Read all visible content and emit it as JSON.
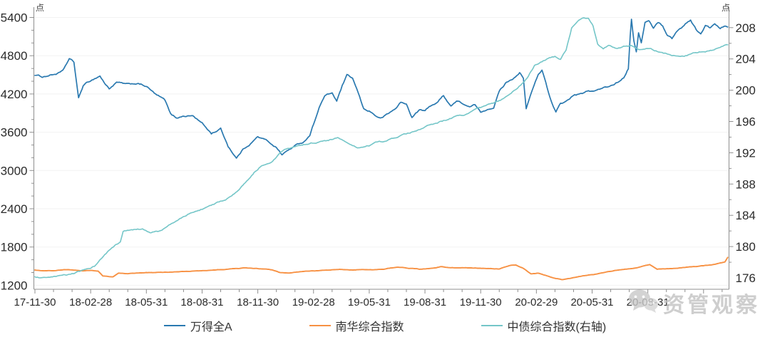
{
  "units": {
    "left": "点",
    "right": "点"
  },
  "watermark": {
    "text": "资管观察",
    "icon": "wechat-logo",
    "color": "#c3c3c3"
  },
  "colors": {
    "axis": "#8f8f8f",
    "grid": "#f2f2f2",
    "tick_text": "#2b2b2b"
  },
  "legend": [
    {
      "label": "万得全A",
      "color": "#2a79b0"
    },
    {
      "label": "南华综合指数",
      "color": "#f79143"
    },
    {
      "label": "中债综合指数(右轴)",
      "color": "#74c6c8"
    }
  ],
  "chart_data": {
    "type": "line",
    "title": "",
    "grid": "horizontal-light",
    "legend_position": "bottom-center",
    "x_axis": {
      "kind": "time",
      "start": "2017-11-30",
      "end": "2021-01",
      "minor_tick": "monthly",
      "tick_labels": [
        "17-11-30",
        "18-02-28",
        "18-05-31",
        "18-08-31",
        "18-11-30",
        "19-02-28",
        "19-05-31",
        "19-08-31",
        "19-11-30",
        "20-02-29",
        "20-05-31",
        "20-08-31"
      ],
      "label_interval_months": 3
    },
    "left_axis": {
      "unit": "点",
      "ticks": [
        5400,
        4800,
        4200,
        3600,
        3000,
        2400,
        1800,
        1200
      ],
      "minor_step": 200,
      "range": [
        1200,
        5400
      ]
    },
    "right_axis": {
      "unit": "点",
      "ticks": [
        208,
        204,
        200,
        196,
        192,
        188,
        184,
        180,
        176
      ],
      "minor_step": 2,
      "range": [
        176,
        208
      ]
    },
    "series": [
      {
        "name": "万得全A",
        "axis": "left",
        "color": "#2a79b0",
        "width": 1.7,
        "noise": 26,
        "points": [
          [
            0,
            4500
          ],
          [
            0.4,
            4470
          ],
          [
            0.8,
            4495
          ],
          [
            1.2,
            4520
          ],
          [
            1.5,
            4555
          ],
          [
            1.85,
            4750
          ],
          [
            2.1,
            4695
          ],
          [
            2.35,
            4130
          ],
          [
            2.6,
            4330
          ],
          [
            3,
            4410
          ],
          [
            3.5,
            4485
          ],
          [
            3.8,
            4350
          ],
          [
            4,
            4285
          ],
          [
            4.4,
            4380
          ],
          [
            5,
            4345
          ],
          [
            5.5,
            4365
          ],
          [
            6,
            4320
          ],
          [
            6.5,
            4190
          ],
          [
            7,
            4100
          ],
          [
            7.3,
            3880
          ],
          [
            7.6,
            3825
          ],
          [
            8,
            3855
          ],
          [
            8.5,
            3860
          ],
          [
            9,
            3740
          ],
          [
            9.5,
            3580
          ],
          [
            10,
            3655
          ],
          [
            10.4,
            3385
          ],
          [
            10.85,
            3195
          ],
          [
            11.2,
            3330
          ],
          [
            11.6,
            3425
          ],
          [
            12,
            3530
          ],
          [
            12.5,
            3465
          ],
          [
            13,
            3365
          ],
          [
            13.3,
            3250
          ],
          [
            13.7,
            3330
          ],
          [
            14,
            3385
          ],
          [
            14.5,
            3455
          ],
          [
            14.8,
            3560
          ],
          [
            15,
            3730
          ],
          [
            15.3,
            3990
          ],
          [
            15.6,
            4170
          ],
          [
            16,
            4215
          ],
          [
            16.25,
            4085
          ],
          [
            16.55,
            4330
          ],
          [
            16.8,
            4485
          ],
          [
            17.1,
            4440
          ],
          [
            17.4,
            4215
          ],
          [
            17.7,
            3960
          ],
          [
            18,
            3935
          ],
          [
            18.3,
            3870
          ],
          [
            18.6,
            3815
          ],
          [
            19,
            3885
          ],
          [
            19.4,
            3965
          ],
          [
            19.7,
            4070
          ],
          [
            20,
            4035
          ],
          [
            20.3,
            3835
          ],
          [
            20.7,
            3950
          ],
          [
            21,
            3935
          ],
          [
            21.3,
            4010
          ],
          [
            21.7,
            4080
          ],
          [
            22,
            4175
          ],
          [
            22.4,
            4015
          ],
          [
            22.7,
            4090
          ],
          [
            23,
            4055
          ],
          [
            23.4,
            3990
          ],
          [
            23.7,
            4025
          ],
          [
            24,
            3905
          ],
          [
            24.3,
            3955
          ],
          [
            24.7,
            4000
          ],
          [
            25,
            4245
          ],
          [
            25.4,
            4390
          ],
          [
            25.8,
            4460
          ],
          [
            26.1,
            4545
          ],
          [
            26.3,
            4440
          ],
          [
            26.45,
            3960
          ],
          [
            26.6,
            4100
          ],
          [
            26.8,
            4275
          ],
          [
            27.1,
            4500
          ],
          [
            27.3,
            4575
          ],
          [
            27.5,
            4390
          ],
          [
            27.8,
            4085
          ],
          [
            28.05,
            3905
          ],
          [
            28.3,
            4045
          ],
          [
            28.6,
            4080
          ],
          [
            29,
            4180
          ],
          [
            29.4,
            4195
          ],
          [
            29.8,
            4240
          ],
          [
            30.2,
            4250
          ],
          [
            30.6,
            4290
          ],
          [
            31,
            4325
          ],
          [
            31.4,
            4395
          ],
          [
            31.7,
            4465
          ],
          [
            31.95,
            4610
          ],
          [
            32.05,
            5125
          ],
          [
            32.12,
            5390
          ],
          [
            32.25,
            5045
          ],
          [
            32.38,
            4855
          ],
          [
            32.5,
            5160
          ],
          [
            32.65,
            5015
          ],
          [
            32.85,
            5325
          ],
          [
            33.05,
            5345
          ],
          [
            33.3,
            5235
          ],
          [
            33.55,
            5325
          ],
          [
            33.8,
            5270
          ],
          [
            34.05,
            5125
          ],
          [
            34.3,
            5070
          ],
          [
            34.55,
            5180
          ],
          [
            34.8,
            5235
          ],
          [
            35.1,
            5325
          ],
          [
            35.3,
            5360
          ],
          [
            35.6,
            5215
          ],
          [
            35.85,
            5135
          ],
          [
            36.1,
            5270
          ],
          [
            36.35,
            5235
          ],
          [
            36.6,
            5290
          ],
          [
            36.9,
            5215
          ],
          [
            37.1,
            5255
          ],
          [
            37.3,
            5250
          ]
        ]
      },
      {
        "name": "南华综合指数",
        "axis": "left",
        "color": "#f79143",
        "width": 1.9,
        "noise": 6,
        "points": [
          [
            0,
            1440
          ],
          [
            0.5,
            1425
          ],
          [
            1,
            1432
          ],
          [
            1.6,
            1445
          ],
          [
            2.1,
            1438
          ],
          [
            2.6,
            1424
          ],
          [
            3,
            1432
          ],
          [
            3.4,
            1422
          ],
          [
            3.65,
            1345
          ],
          [
            4,
            1335
          ],
          [
            4.2,
            1330
          ],
          [
            4.5,
            1390
          ],
          [
            5,
            1383
          ],
          [
            5.6,
            1392
          ],
          [
            6.2,
            1398
          ],
          [
            7,
            1405
          ],
          [
            7.8,
            1412
          ],
          [
            8.6,
            1422
          ],
          [
            9.4,
            1432
          ],
          [
            10.2,
            1448
          ],
          [
            10.8,
            1460
          ],
          [
            11.3,
            1472
          ],
          [
            11.8,
            1463
          ],
          [
            12.2,
            1458
          ],
          [
            12.8,
            1438
          ],
          [
            13.2,
            1396
          ],
          [
            13.7,
            1388
          ],
          [
            14.3,
            1412
          ],
          [
            15,
            1424
          ],
          [
            15.7,
            1436
          ],
          [
            16.4,
            1448
          ],
          [
            17,
            1442
          ],
          [
            17.6,
            1447
          ],
          [
            18.2,
            1440
          ],
          [
            18.8,
            1452
          ],
          [
            19.5,
            1487
          ],
          [
            20,
            1472
          ],
          [
            20.7,
            1452
          ],
          [
            21.4,
            1468
          ],
          [
            21.9,
            1494
          ],
          [
            22.4,
            1472
          ],
          [
            23,
            1478
          ],
          [
            23.7,
            1471
          ],
          [
            24.4,
            1462
          ],
          [
            25,
            1453
          ],
          [
            25.6,
            1512
          ],
          [
            25.9,
            1519
          ],
          [
            26.3,
            1468
          ],
          [
            26.7,
            1381
          ],
          [
            27.1,
            1392
          ],
          [
            27.5,
            1355
          ],
          [
            27.9,
            1315
          ],
          [
            28.35,
            1289
          ],
          [
            28.8,
            1306
          ],
          [
            29.3,
            1338
          ],
          [
            29.8,
            1359
          ],
          [
            30.3,
            1378
          ],
          [
            30.8,
            1414
          ],
          [
            31.3,
            1434
          ],
          [
            31.9,
            1452
          ],
          [
            32.4,
            1471
          ],
          [
            32.8,
            1506
          ],
          [
            33.1,
            1524
          ],
          [
            33.5,
            1452
          ],
          [
            34,
            1460
          ],
          [
            34.6,
            1468
          ],
          [
            35.2,
            1487
          ],
          [
            35.8,
            1499
          ],
          [
            36.4,
            1518
          ],
          [
            36.9,
            1549
          ],
          [
            37.15,
            1565
          ],
          [
            37.3,
            1638
          ]
        ]
      },
      {
        "name": "中债综合指数(右轴)",
        "axis": "right",
        "color": "#74c6c8",
        "width": 1.6,
        "noise": 0.18,
        "points": [
          [
            0,
            176.1
          ],
          [
            0.6,
            175.9
          ],
          [
            1.2,
            176.1
          ],
          [
            2,
            176.5
          ],
          [
            2.6,
            176.9
          ],
          [
            3.2,
            177.5
          ],
          [
            3.9,
            179.3
          ],
          [
            4.3,
            180.1
          ],
          [
            4.6,
            180.5
          ],
          [
            4.75,
            181.9
          ],
          [
            5.2,
            182.1
          ],
          [
            5.8,
            182.2
          ],
          [
            6.2,
            181.7
          ],
          [
            6.7,
            182.0
          ],
          [
            7.2,
            182.7
          ],
          [
            7.8,
            183.5
          ],
          [
            8.3,
            184.2
          ],
          [
            9,
            184.8
          ],
          [
            9.7,
            185.4
          ],
          [
            10.4,
            186.2
          ],
          [
            11,
            187.2
          ],
          [
            11.4,
            188.3
          ],
          [
            11.8,
            189.5
          ],
          [
            12.2,
            190.4
          ],
          [
            12.8,
            191.0
          ],
          [
            13.4,
            192.3
          ],
          [
            13.8,
            192.6
          ],
          [
            14.2,
            192.9
          ],
          [
            14.8,
            193.2
          ],
          [
            15.4,
            193.4
          ],
          [
            16,
            193.7
          ],
          [
            16.3,
            194.0
          ],
          [
            16.7,
            193.4
          ],
          [
            17.1,
            192.8
          ],
          [
            17.5,
            192.6
          ],
          [
            18,
            192.9
          ],
          [
            18.4,
            193.3
          ],
          [
            19,
            193.6
          ],
          [
            19.6,
            194.1
          ],
          [
            20.2,
            194.5
          ],
          [
            20.8,
            195.0
          ],
          [
            21.4,
            195.6
          ],
          [
            22,
            196.1
          ],
          [
            22.6,
            196.6
          ],
          [
            23.2,
            196.9
          ],
          [
            23.8,
            197.5
          ],
          [
            24.4,
            198.1
          ],
          [
            25,
            198.6
          ],
          [
            25.5,
            199.3
          ],
          [
            26,
            200.3
          ],
          [
            26.5,
            201.5
          ],
          [
            26.9,
            203.2
          ],
          [
            27.3,
            203.7
          ],
          [
            27.7,
            204.1
          ],
          [
            28,
            204.3
          ],
          [
            28.3,
            204.0
          ],
          [
            28.6,
            205.2
          ],
          [
            28.9,
            208.0
          ],
          [
            29.2,
            208.9
          ],
          [
            29.5,
            209.3
          ],
          [
            29.8,
            209.1
          ],
          [
            30.05,
            208.2
          ],
          [
            30.3,
            206.0
          ],
          [
            30.6,
            205.3
          ],
          [
            30.9,
            205.7
          ],
          [
            31.3,
            205.3
          ],
          [
            31.7,
            205.6
          ],
          [
            32.1,
            205.8
          ],
          [
            32.5,
            205.3
          ],
          [
            32.9,
            205.4
          ],
          [
            33.3,
            205.1
          ],
          [
            33.7,
            204.9
          ],
          [
            34.1,
            204.6
          ],
          [
            34.5,
            204.4
          ],
          [
            34.9,
            204.4
          ],
          [
            35.3,
            204.6
          ],
          [
            35.7,
            204.8
          ],
          [
            36.1,
            205.0
          ],
          [
            36.5,
            205.2
          ],
          [
            36.9,
            205.4
          ],
          [
            37.3,
            205.8
          ]
        ]
      }
    ]
  }
}
